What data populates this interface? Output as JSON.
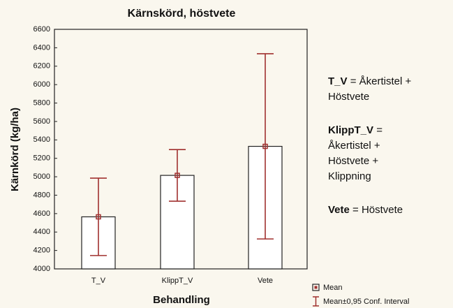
{
  "chart_data": {
    "type": "bar",
    "title": "Kärnskörd, höstvete",
    "x_label": "Behandling",
    "y_label": "Kärnkörd (kg/ha)",
    "categories": [
      "T_V",
      "KlippT_V",
      "Vete"
    ],
    "series": [
      {
        "name": "Mean",
        "color": "#ffffff",
        "error_color": "#a0302f",
        "values": [
          4565,
          5015,
          5330
        ],
        "errors": [
          420,
          280,
          1005
        ]
      }
    ],
    "error_label": "Mean±0,95 Conf. Interval",
    "ylim": [
      4000,
      6600
    ],
    "yticks": [
      4000,
      4200,
      4400,
      4600,
      4800,
      5000,
      5200,
      5400,
      5600,
      5800,
      6000,
      6200,
      6400,
      6600
    ],
    "annotations": [
      {
        "term": "T_V",
        "lines": [
          "= Åkertistel +",
          "Höstvete"
        ]
      },
      {
        "term": "KlippT_V",
        "lines": [
          "=",
          "Åkertistel +",
          "Höstvete +",
          "Klippning"
        ]
      },
      {
        "term": "Vete",
        "lines": [
          "= Höstvete"
        ]
      }
    ]
  }
}
